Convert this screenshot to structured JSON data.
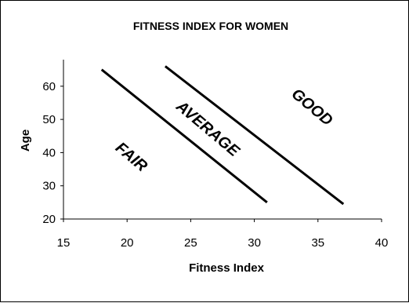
{
  "chart_data": {
    "type": "line",
    "title": "FITNESS INDEX FOR WOMEN",
    "xlabel": "Fitness Index",
    "ylabel": "Age",
    "xlim": [
      15,
      40
    ],
    "ylim": [
      20,
      68
    ],
    "xticks": [
      15,
      20,
      25,
      30,
      35,
      40
    ],
    "yticks": [
      20,
      30,
      40,
      50,
      60
    ],
    "grid": false,
    "line_color": "#000000",
    "series": [
      {
        "points": [
          [
            18,
            65
          ],
          [
            31,
            25
          ]
        ]
      },
      {
        "points": [
          [
            23,
            66
          ],
          [
            37,
            24.5
          ]
        ]
      }
    ],
    "region_labels": [
      {
        "text": "FAIR",
        "x": 20.3,
        "y": 38.5,
        "rotation": 40
      },
      {
        "text": "AVERAGE",
        "x": 26.3,
        "y": 47,
        "rotation": 40
      },
      {
        "text": "GOOD",
        "x": 34.5,
        "y": 53.5,
        "rotation": 40
      }
    ]
  }
}
